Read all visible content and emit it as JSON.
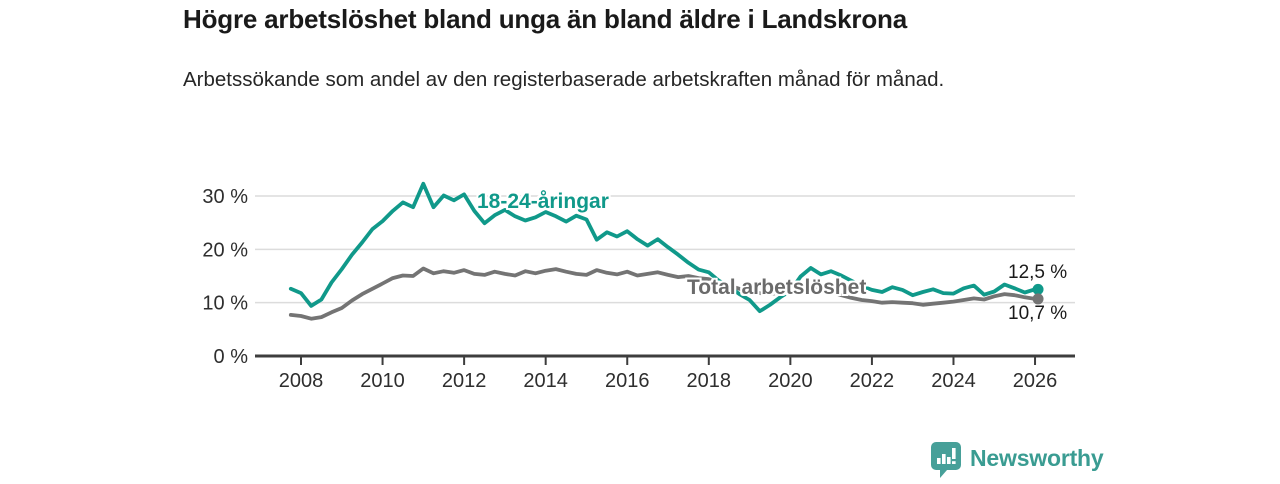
{
  "title": "Högre arbetslöshet bland unga än bland äldre i Landskrona",
  "subtitle": "Arbetssökande som andel av den registerbaserade arbetskraften månad för månad.",
  "footer": {
    "brand": "Newsworthy"
  },
  "colors": {
    "youth_line": "#10998a",
    "total_line": "#747474",
    "total_label": "#6b6b6b",
    "title_text": "#1a1a1a",
    "axis_text": "#2e2e2e",
    "gridline": "#dcdcdc",
    "axis_line": "#3d3d3d",
    "logo_teal": "#47a099",
    "wordmark_teal": "#3a9c92",
    "background": "#ffffff"
  },
  "chart_data": {
    "type": "line",
    "title": "Högre arbetslöshet bland unga än bland äldre i Landskrona",
    "subtitle": "Arbetssökande som andel av den registerbaserade arbetskraften månad för månad.",
    "xlabel": "",
    "ylabel": "",
    "grid": true,
    "legend_position": "inline-labels",
    "x_axis": {
      "ticks": [
        2008,
        2010,
        2012,
        2014,
        2016,
        2018,
        2020,
        2022,
        2024,
        2026
      ],
      "range": [
        2007.6,
        2027.0
      ]
    },
    "y_axis": {
      "ticks": [
        0,
        10,
        20,
        30
      ],
      "tick_labels": [
        "0 %",
        "10 %",
        "20 %",
        "30 %"
      ],
      "range": [
        0,
        34
      ],
      "unit": "%"
    },
    "series": [
      {
        "name": "18-24-åringar",
        "color": "#10998a",
        "end_value": 12.5,
        "end_label": "12,5 %",
        "points": [
          [
            2007.75,
            12.6
          ],
          [
            2008.0,
            11.8
          ],
          [
            2008.25,
            9.4
          ],
          [
            2008.5,
            10.6
          ],
          [
            2008.75,
            13.8
          ],
          [
            2009.0,
            16.3
          ],
          [
            2009.25,
            19.0
          ],
          [
            2009.5,
            21.3
          ],
          [
            2009.75,
            23.8
          ],
          [
            2010.0,
            25.3
          ],
          [
            2010.25,
            27.2
          ],
          [
            2010.5,
            28.8
          ],
          [
            2010.75,
            27.9
          ],
          [
            2011.0,
            32.3
          ],
          [
            2011.25,
            27.9
          ],
          [
            2011.5,
            30.1
          ],
          [
            2011.75,
            29.2
          ],
          [
            2012.0,
            30.3
          ],
          [
            2012.25,
            27.2
          ],
          [
            2012.5,
            24.9
          ],
          [
            2012.75,
            26.4
          ],
          [
            2013.0,
            27.4
          ],
          [
            2013.25,
            26.2
          ],
          [
            2013.5,
            25.4
          ],
          [
            2013.75,
            26.0
          ],
          [
            2014.0,
            27.0
          ],
          [
            2014.25,
            26.2
          ],
          [
            2014.5,
            25.2
          ],
          [
            2014.75,
            26.3
          ],
          [
            2015.0,
            25.6
          ],
          [
            2015.25,
            21.8
          ],
          [
            2015.5,
            23.2
          ],
          [
            2015.75,
            22.4
          ],
          [
            2016.0,
            23.4
          ],
          [
            2016.25,
            21.9
          ],
          [
            2016.5,
            20.7
          ],
          [
            2016.75,
            21.9
          ],
          [
            2017.0,
            20.4
          ],
          [
            2017.25,
            19.0
          ],
          [
            2017.5,
            17.5
          ],
          [
            2017.75,
            16.2
          ],
          [
            2018.0,
            15.7
          ],
          [
            2018.25,
            14.1
          ],
          [
            2018.5,
            13.0
          ],
          [
            2018.75,
            11.6
          ],
          [
            2019.0,
            10.5
          ],
          [
            2019.25,
            8.4
          ],
          [
            2019.5,
            9.6
          ],
          [
            2019.75,
            11.0
          ],
          [
            2020.0,
            12.2
          ],
          [
            2020.25,
            14.9
          ],
          [
            2020.5,
            16.5
          ],
          [
            2020.75,
            15.3
          ],
          [
            2021.0,
            15.9
          ],
          [
            2021.25,
            15.1
          ],
          [
            2021.5,
            14.1
          ],
          [
            2021.75,
            13.1
          ],
          [
            2022.0,
            12.4
          ],
          [
            2022.25,
            12.0
          ],
          [
            2022.5,
            12.9
          ],
          [
            2022.75,
            12.4
          ],
          [
            2023.0,
            11.4
          ],
          [
            2023.25,
            12.0
          ],
          [
            2023.5,
            12.5
          ],
          [
            2023.75,
            11.8
          ],
          [
            2024.0,
            11.7
          ],
          [
            2024.25,
            12.7
          ],
          [
            2024.5,
            13.2
          ],
          [
            2024.75,
            11.5
          ],
          [
            2025.0,
            12.1
          ],
          [
            2025.25,
            13.4
          ],
          [
            2025.5,
            12.7
          ],
          [
            2025.75,
            11.9
          ],
          [
            2026.0,
            12.5
          ]
        ]
      },
      {
        "name": "Total arbetslöshet",
        "color": "#747474",
        "end_value": 10.7,
        "end_label": "10,7 %",
        "points": [
          [
            2007.75,
            7.7
          ],
          [
            2008.0,
            7.5
          ],
          [
            2008.25,
            7.0
          ],
          [
            2008.5,
            7.3
          ],
          [
            2008.75,
            8.2
          ],
          [
            2009.0,
            9.0
          ],
          [
            2009.25,
            10.4
          ],
          [
            2009.5,
            11.6
          ],
          [
            2009.75,
            12.6
          ],
          [
            2010.0,
            13.6
          ],
          [
            2010.25,
            14.6
          ],
          [
            2010.5,
            15.1
          ],
          [
            2010.75,
            15.0
          ],
          [
            2011.0,
            16.4
          ],
          [
            2011.25,
            15.5
          ],
          [
            2011.5,
            15.9
          ],
          [
            2011.75,
            15.6
          ],
          [
            2012.0,
            16.1
          ],
          [
            2012.25,
            15.4
          ],
          [
            2012.5,
            15.2
          ],
          [
            2012.75,
            15.8
          ],
          [
            2013.0,
            15.4
          ],
          [
            2013.25,
            15.1
          ],
          [
            2013.5,
            15.9
          ],
          [
            2013.75,
            15.5
          ],
          [
            2014.0,
            16.0
          ],
          [
            2014.25,
            16.3
          ],
          [
            2014.5,
            15.8
          ],
          [
            2014.75,
            15.4
          ],
          [
            2015.0,
            15.2
          ],
          [
            2015.25,
            16.1
          ],
          [
            2015.5,
            15.6
          ],
          [
            2015.75,
            15.3
          ],
          [
            2016.0,
            15.8
          ],
          [
            2016.25,
            15.1
          ],
          [
            2016.5,
            15.4
          ],
          [
            2016.75,
            15.7
          ],
          [
            2017.0,
            15.2
          ],
          [
            2017.25,
            14.8
          ],
          [
            2017.5,
            15.0
          ],
          [
            2017.75,
            14.6
          ],
          [
            2018.0,
            14.4
          ],
          [
            2018.25,
            13.8
          ],
          [
            2018.5,
            13.2
          ],
          [
            2018.75,
            12.6
          ],
          [
            2019.0,
            12.2
          ],
          [
            2019.25,
            11.8
          ],
          [
            2019.5,
            11.6
          ],
          [
            2019.75,
            11.9
          ],
          [
            2020.0,
            12.4
          ],
          [
            2020.25,
            13.2
          ],
          [
            2020.5,
            13.0
          ],
          [
            2020.75,
            12.4
          ],
          [
            2021.0,
            12.0
          ],
          [
            2021.25,
            11.4
          ],
          [
            2021.5,
            10.9
          ],
          [
            2021.75,
            10.5
          ],
          [
            2022.0,
            10.3
          ],
          [
            2022.25,
            10.0
          ],
          [
            2022.5,
            10.1
          ],
          [
            2022.75,
            10.0
          ],
          [
            2023.0,
            9.9
          ],
          [
            2023.25,
            9.6
          ],
          [
            2023.5,
            9.8
          ],
          [
            2023.75,
            10.0
          ],
          [
            2024.0,
            10.2
          ],
          [
            2024.25,
            10.5
          ],
          [
            2024.5,
            10.8
          ],
          [
            2024.75,
            10.6
          ],
          [
            2025.0,
            11.2
          ],
          [
            2025.25,
            11.6
          ],
          [
            2025.5,
            11.4
          ],
          [
            2025.75,
            11.0
          ],
          [
            2026.0,
            10.7
          ]
        ]
      }
    ]
  }
}
